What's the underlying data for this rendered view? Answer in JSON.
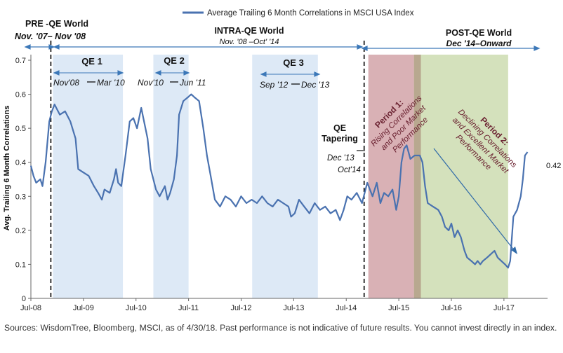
{
  "chart_data": {
    "type": "line",
    "title": "",
    "legend": "Average Trailing 6 Month Correlations in MSCI USA Index",
    "ylabel": "Avg. Trailing 6 Month Correlations",
    "xlabel": "",
    "ylim": [
      0,
      0.7
    ],
    "yticks": [
      "0",
      "0.1",
      "0.2",
      "0.3",
      "0.4",
      "0.5",
      "0.6",
      "0.7"
    ],
    "xlim": [
      2008.5,
      2018.33
    ],
    "xticks": [
      {
        "label": "Jul-08",
        "x": 2008.5
      },
      {
        "label": "Jul-09",
        "x": 2009.5
      },
      {
        "label": "Jul-10",
        "x": 2010.5
      },
      {
        "label": "Jul-11",
        "x": 2011.5
      },
      {
        "label": "Jul-12",
        "x": 2012.5
      },
      {
        "label": "Jul-13",
        "x": 2013.5
      },
      {
        "label": "Jul-14",
        "x": 2014.5
      },
      {
        "label": "Jul-15",
        "x": 2015.5
      },
      {
        "label": "Jul-16",
        "x": 2016.5
      },
      {
        "label": "Jul-17",
        "x": 2017.5
      }
    ],
    "series": [
      {
        "name": "Average Trailing 6 Month Correlations in MSCI USA Index",
        "color": "#4a72b0",
        "points": [
          [
            2008.5,
            0.39
          ],
          [
            2008.55,
            0.36
          ],
          [
            2008.6,
            0.34
          ],
          [
            2008.68,
            0.35
          ],
          [
            2008.72,
            0.33
          ],
          [
            2008.78,
            0.4
          ],
          [
            2008.85,
            0.52
          ],
          [
            2008.9,
            0.55
          ],
          [
            2008.95,
            0.57
          ],
          [
            2009.05,
            0.54
          ],
          [
            2009.15,
            0.55
          ],
          [
            2009.25,
            0.52
          ],
          [
            2009.35,
            0.47
          ],
          [
            2009.4,
            0.38
          ],
          [
            2009.5,
            0.37
          ],
          [
            2009.6,
            0.36
          ],
          [
            2009.7,
            0.33
          ],
          [
            2009.78,
            0.31
          ],
          [
            2009.85,
            0.29
          ],
          [
            2009.9,
            0.32
          ],
          [
            2010.0,
            0.31
          ],
          [
            2010.08,
            0.35
          ],
          [
            2010.12,
            0.38
          ],
          [
            2010.16,
            0.34
          ],
          [
            2010.22,
            0.33
          ],
          [
            2010.3,
            0.42
          ],
          [
            2010.38,
            0.52
          ],
          [
            2010.45,
            0.53
          ],
          [
            2010.52,
            0.5
          ],
          [
            2010.6,
            0.56
          ],
          [
            2010.68,
            0.5
          ],
          [
            2010.72,
            0.47
          ],
          [
            2010.78,
            0.38
          ],
          [
            2010.88,
            0.32
          ],
          [
            2010.95,
            0.3
          ],
          [
            2011.05,
            0.33
          ],
          [
            2011.1,
            0.29
          ],
          [
            2011.15,
            0.31
          ],
          [
            2011.22,
            0.35
          ],
          [
            2011.28,
            0.42
          ],
          [
            2011.32,
            0.54
          ],
          [
            2011.4,
            0.58
          ],
          [
            2011.48,
            0.59
          ],
          [
            2011.55,
            0.6
          ],
          [
            2011.62,
            0.59
          ],
          [
            2011.7,
            0.58
          ],
          [
            2011.78,
            0.5
          ],
          [
            2011.85,
            0.42
          ],
          [
            2011.92,
            0.36
          ],
          [
            2012.0,
            0.29
          ],
          [
            2012.1,
            0.27
          ],
          [
            2012.2,
            0.3
          ],
          [
            2012.3,
            0.29
          ],
          [
            2012.4,
            0.27
          ],
          [
            2012.5,
            0.3
          ],
          [
            2012.6,
            0.28
          ],
          [
            2012.7,
            0.29
          ],
          [
            2012.8,
            0.28
          ],
          [
            2012.9,
            0.3
          ],
          [
            2013.0,
            0.28
          ],
          [
            2013.1,
            0.27
          ],
          [
            2013.2,
            0.29
          ],
          [
            2013.3,
            0.28
          ],
          [
            2013.4,
            0.27
          ],
          [
            2013.45,
            0.24
          ],
          [
            2013.52,
            0.25
          ],
          [
            2013.6,
            0.29
          ],
          [
            2013.7,
            0.27
          ],
          [
            2013.8,
            0.25
          ],
          [
            2013.9,
            0.28
          ],
          [
            2014.0,
            0.26
          ],
          [
            2014.1,
            0.27
          ],
          [
            2014.2,
            0.25
          ],
          [
            2014.3,
            0.26
          ],
          [
            2014.38,
            0.23
          ],
          [
            2014.45,
            0.26
          ],
          [
            2014.52,
            0.3
          ],
          [
            2014.6,
            0.29
          ],
          [
            2014.7,
            0.31
          ],
          [
            2014.8,
            0.28
          ],
          [
            2014.9,
            0.34
          ],
          [
            2015.0,
            0.3
          ],
          [
            2015.08,
            0.34
          ],
          [
            2015.15,
            0.28
          ],
          [
            2015.22,
            0.31
          ],
          [
            2015.3,
            0.3
          ],
          [
            2015.38,
            0.32
          ],
          [
            2015.45,
            0.26
          ],
          [
            2015.5,
            0.3
          ],
          [
            2015.55,
            0.4
          ],
          [
            2015.6,
            0.44
          ],
          [
            2015.65,
            0.45
          ],
          [
            2015.72,
            0.41
          ],
          [
            2015.8,
            0.42
          ],
          [
            2015.9,
            0.42
          ],
          [
            2015.95,
            0.4
          ],
          [
            2016.0,
            0.33
          ],
          [
            2016.05,
            0.28
          ],
          [
            2016.15,
            0.27
          ],
          [
            2016.25,
            0.26
          ],
          [
            2016.32,
            0.24
          ],
          [
            2016.38,
            0.21
          ],
          [
            2016.45,
            0.2
          ],
          [
            2016.5,
            0.22
          ],
          [
            2016.56,
            0.18
          ],
          [
            2016.62,
            0.2
          ],
          [
            2016.68,
            0.18
          ],
          [
            2016.75,
            0.14
          ],
          [
            2016.8,
            0.12
          ],
          [
            2016.88,
            0.11
          ],
          [
            2016.95,
            0.1
          ],
          [
            2017.0,
            0.11
          ],
          [
            2017.05,
            0.1
          ],
          [
            2017.1,
            0.11
          ],
          [
            2017.18,
            0.12
          ],
          [
            2017.25,
            0.13
          ],
          [
            2017.32,
            0.14
          ],
          [
            2017.38,
            0.12
          ],
          [
            2017.45,
            0.11
          ],
          [
            2017.52,
            0.1
          ],
          [
            2017.58,
            0.09
          ],
          [
            2017.62,
            0.11
          ],
          [
            2017.68,
            0.24
          ],
          [
            2017.75,
            0.26
          ],
          [
            2017.82,
            0.3
          ],
          [
            2017.86,
            0.35
          ],
          [
            2017.9,
            0.42
          ],
          [
            2017.95,
            0.43
          ]
        ]
      }
    ],
    "annotations": {
      "pre_qe_title": "PRE -QE World",
      "pre_qe_dates": "Nov. '07– Nov '08",
      "intra_qe_title": "INTRA-QE World",
      "intra_qe_dates": "Nov. '08 –Oct' '14",
      "post_qe_title": "POST-QE World",
      "post_qe_dates": "Dec '14–Onward",
      "qe1": "QE 1",
      "qe1_start": "Nov'08",
      "qe1_end": "Mar '10",
      "qe2": "QE 2",
      "qe2_start": "Nov'10",
      "qe2_end": "Jun '11",
      "qe3": "QE 3",
      "qe3_start": "Sep '12",
      "qe3_end": "Dec '13",
      "tapering_1": "QE",
      "tapering_2": "Tapering",
      "tapering_start": "Dec '13",
      "tapering_end": "Oct'14",
      "period1_title": "Period 1:",
      "period1_line1": "Rising Correlations",
      "period1_line2": "and Poor Market",
      "period1_line3": "Performance",
      "period2_title": "Period 2:",
      "period2_line1": "Declining Correlations",
      "period2_line2": "and Excellent Market",
      "period2_line3": "Performance",
      "end_label": "0.42"
    },
    "bands": [
      {
        "name": "qe1",
        "x0": 2008.92,
        "x1": 2010.25,
        "color": "#dde9f6"
      },
      {
        "name": "qe2",
        "x0": 2010.83,
        "x1": 2011.5,
        "color": "#dde9f6"
      },
      {
        "name": "qe3",
        "x0": 2012.71,
        "x1": 2013.96,
        "color": "#dde9f6"
      },
      {
        "name": "period1",
        "x0": 2014.92,
        "x1": 2015.92,
        "color": "#d9b1b5"
      },
      {
        "name": "period2",
        "x0": 2015.79,
        "x1": 2017.58,
        "color": "#d4e1bc"
      }
    ],
    "dividers": [
      2008.88,
      2014.84
    ]
  },
  "footer": {
    "sources": "Sources: WisdomTree, Bloomberg, MSCI, as of 4/30/18. Past performance is not indicative of future results. You cannot invest directly in an index."
  }
}
